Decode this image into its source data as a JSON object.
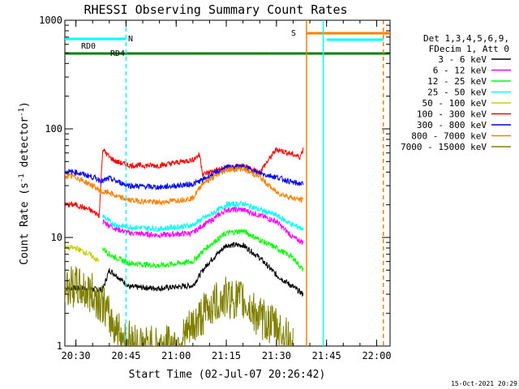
{
  "chart_data": {
    "type": "line",
    "title": "RHESSI Observing Summary Count Rates",
    "xlabel": "Start Time (02-Jul-07 20:26:42)",
    "ylabel": "Count Rate (s",
    "ylabel_sup": "-1",
    "ylabel_rest": " detector",
    "ylabel_sup2": "-1",
    "ylabel_end": ")",
    "y_scale": "log",
    "xlim": [
      "20:26:42",
      "22:04"
    ],
    "ylim": [
      1,
      1000
    ],
    "x_ticks": [
      "20:30",
      "20:45",
      "21:00",
      "21:15",
      "21:30",
      "21:45",
      "22:00"
    ],
    "y_ticks": [
      "1",
      "10",
      "100",
      "1000"
    ],
    "legend_position": "right",
    "legend_header": [
      "Det 1,3,4,5,6,9,",
      "FDecim 1, Att 0"
    ],
    "timestamp": "15-Oct-2021 20:29",
    "series": [
      {
        "name": "3 - 6 keV",
        "color": "#000000",
        "x": [
          "20:26:42",
          "20:32",
          "20:38",
          "20:40",
          "20:42",
          "20:46",
          "20:55",
          "21:05",
          "21:08",
          "21:10",
          "21:15",
          "21:20",
          "21:25",
          "21:30",
          "21:35",
          "21:38"
        ],
        "values": [
          3.4,
          3.4,
          3.3,
          5.0,
          4.5,
          3.5,
          3.4,
          3.6,
          5.0,
          6.0,
          8.5,
          8.5,
          6.5,
          4.5,
          3.5,
          3.0
        ]
      },
      {
        "name": "6 - 12 keV",
        "color": "#ff00ff",
        "x": [
          "20:38",
          "20:40",
          "20:42",
          "20:46",
          "20:55",
          "21:05",
          "21:08",
          "21:10",
          "21:15",
          "21:20",
          "21:25",
          "21:30",
          "21:35",
          "21:38"
        ],
        "values": [
          14,
          13,
          12,
          11,
          10.5,
          11,
          13,
          14,
          18,
          18,
          16,
          14,
          10,
          9
        ]
      },
      {
        "name": "12 - 25 keV",
        "color": "#00ff00",
        "x": [
          "20:38",
          "20:40",
          "20:42",
          "20:46",
          "20:55",
          "21:05",
          "21:08",
          "21:10",
          "21:15",
          "21:20",
          "21:25",
          "21:30",
          "21:35",
          "21:38"
        ],
        "values": [
          8,
          7,
          6.5,
          5.8,
          5.5,
          6,
          7.5,
          8.5,
          11,
          11.5,
          9.5,
          8,
          6.5,
          5
        ]
      },
      {
        "name": "25 - 50 keV",
        "color": "#00ffff",
        "x": [
          "20:38",
          "20:40",
          "20:42",
          "20:46",
          "20:55",
          "21:05",
          "21:08",
          "21:10",
          "21:15",
          "21:20",
          "21:25",
          "21:30",
          "21:35",
          "21:38"
        ],
        "values": [
          16,
          14,
          13,
          12.5,
          12,
          13,
          15,
          16,
          20,
          20.5,
          18,
          16,
          13,
          12
        ]
      },
      {
        "name": "50 - 100 keV",
        "color": "#cccc00",
        "x": [
          "20:26:42",
          "20:30",
          "20:34",
          "20:37"
        ],
        "values": [
          8,
          8,
          7,
          6
        ]
      },
      {
        "name": "100 - 300 keV",
        "color": "#ff0000",
        "x": [
          "20:26:42",
          "20:30",
          "20:34",
          "20:37",
          "20:38",
          "20:40",
          "20:42",
          "20:46",
          "20:55",
          "21:05",
          "21:07",
          "21:08",
          "21:10",
          "21:15",
          "21:20",
          "21:25",
          "21:30",
          "21:35",
          "21:37",
          "21:38"
        ],
        "values": [
          20,
          20,
          18,
          16,
          65,
          55,
          50,
          46,
          46,
          52,
          58,
          38,
          40,
          44,
          45,
          40,
          65,
          58,
          55,
          65
        ]
      },
      {
        "name": "300 - 800 keV",
        "color": "#0000ff",
        "x": [
          "20:26:42",
          "20:30",
          "20:35",
          "20:38",
          "20:40",
          "20:42",
          "20:46",
          "20:55",
          "21:05",
          "21:08",
          "21:10",
          "21:15",
          "21:20",
          "21:25",
          "21:30",
          "21:35",
          "21:38"
        ],
        "values": [
          40,
          40,
          36,
          33,
          35,
          33,
          30,
          29,
          31,
          34,
          37,
          44,
          45,
          39,
          36,
          32,
          31
        ]
      },
      {
        "name": "800 - 7000 keV",
        "color": "#ff8000",
        "x": [
          "20:26:42",
          "20:30",
          "20:35",
          "20:38",
          "20:40",
          "20:42",
          "20:46",
          "20:55",
          "21:05",
          "21:08",
          "21:10",
          "21:15",
          "21:20",
          "21:25",
          "21:30",
          "21:35",
          "21:38"
        ],
        "values": [
          37,
          36,
          30,
          26,
          26,
          24,
          22,
          21,
          23,
          32,
          34,
          42,
          43,
          36,
          26,
          23,
          22
        ]
      },
      {
        "name": "7000 - 15000 keV",
        "color": "#808000",
        "x": [
          "20:26:42",
          "20:30",
          "20:35",
          "20:38",
          "20:40",
          "20:44",
          "20:50",
          "21:00",
          "21:05",
          "21:10",
          "21:15",
          "21:20",
          "21:25",
          "21:30",
          "21:35"
        ],
        "values": [
          3.5,
          3.5,
          3,
          2.5,
          1.8,
          1.2,
          1,
          1,
          1.5,
          2.3,
          2.8,
          2.6,
          1.8,
          1.5,
          1
        ]
      }
    ],
    "state_bars": [
      {
        "label": "RD0",
        "color": "#00ffff",
        "segments": [
          [
            "20:26:42",
            "20:45"
          ]
        ]
      },
      {
        "label": "RD4",
        "color": "#008000",
        "segments": [
          [
            "20:26:42",
            "20:45"
          ],
          [
            "20:45",
            "21:07"
          ],
          [
            "21:07",
            "21:28"
          ],
          [
            "21:28",
            "22:04"
          ]
        ]
      },
      {
        "label": "N",
        "color": "#00ffff",
        "segments": [
          [
            "21:45",
            "22:02"
          ]
        ]
      },
      {
        "label": "S",
        "color": "#ff8000",
        "segments": [
          [
            "21:39",
            "22:04"
          ]
        ]
      }
    ],
    "markers": [
      {
        "label": "",
        "color": "#00ffff",
        "x": "20:45",
        "style": "dashed"
      },
      {
        "label": "",
        "color": "#00ffff",
        "x": "21:44",
        "style": "solid"
      },
      {
        "label": "",
        "color": "#ff8000",
        "x": "21:39",
        "style": "solid"
      },
      {
        "label": "",
        "color": "#ff8000",
        "x": "22:02",
        "style": "dashed"
      }
    ]
  }
}
